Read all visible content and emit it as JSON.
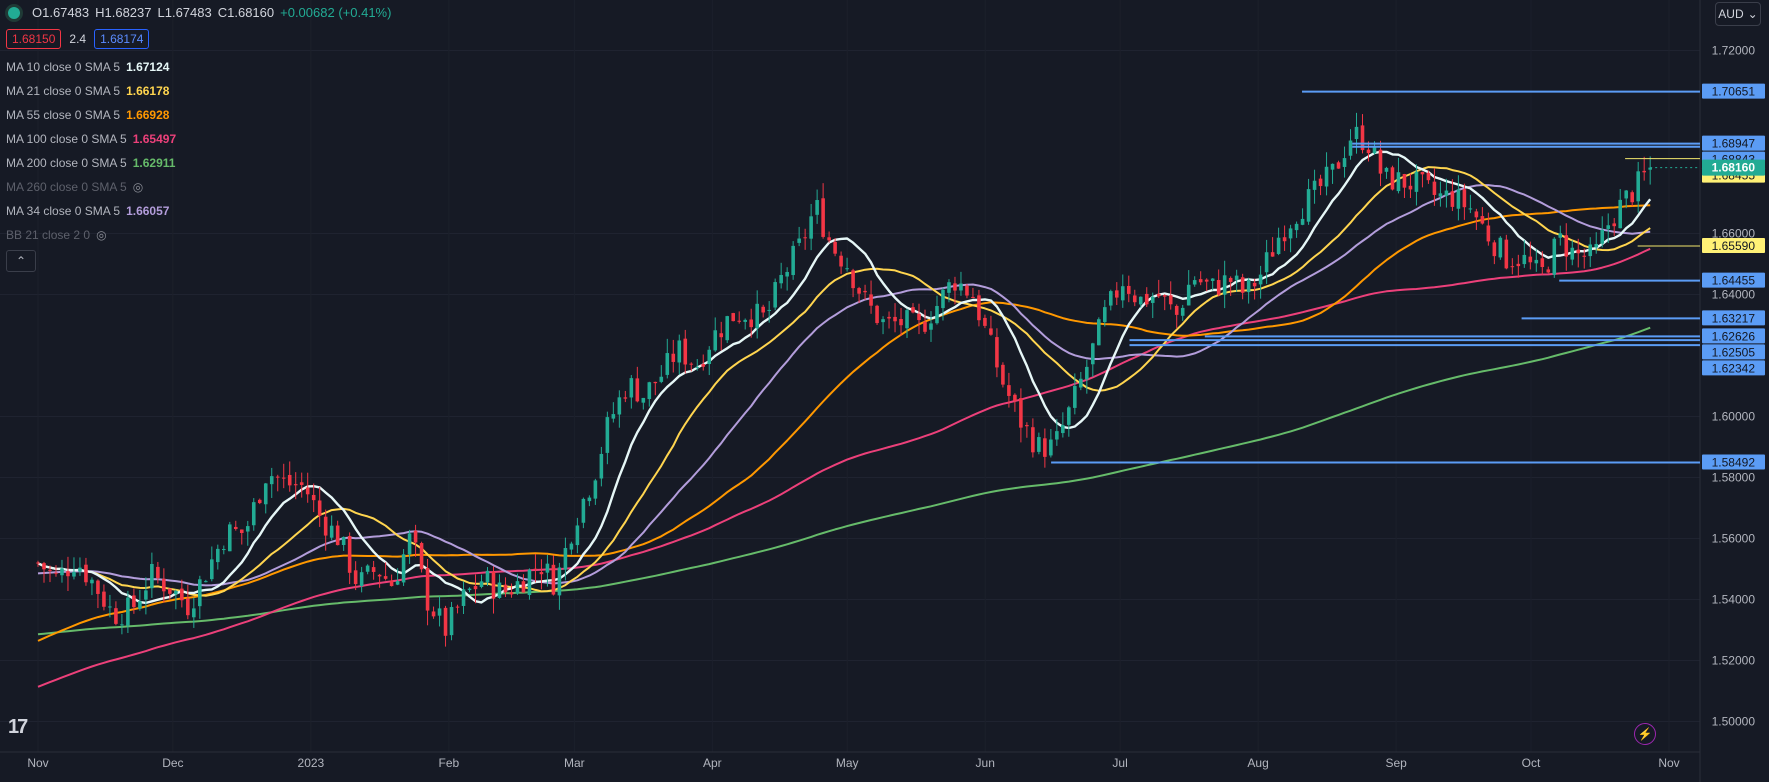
{
  "ohlc": {
    "open": "O1.67483",
    "high": "H1.68237",
    "low": "L1.67483",
    "close": "C1.68160",
    "change": "+0.00682 (+0.41%)"
  },
  "quote": {
    "bid": "1.68150",
    "spread": "2.4",
    "ask": "1.68174"
  },
  "legend": [
    {
      "label": "MA 10 close 0 SMA 5",
      "value": "1.67124",
      "color": "#e6f7f7",
      "hidden": false
    },
    {
      "label": "MA 21 close 0 SMA 5",
      "value": "1.66178",
      "color": "#ffd54f",
      "hidden": false
    },
    {
      "label": "MA 55 close 0 SMA 5",
      "value": "1.66928",
      "color": "#ff9800",
      "hidden": false
    },
    {
      "label": "MA 100 close 0 SMA 5",
      "value": "1.65497",
      "color": "#ec407a",
      "hidden": false
    },
    {
      "label": "MA 200 close 0 SMA 5",
      "value": "1.62911",
      "color": "#66bb6a",
      "hidden": false
    },
    {
      "label": "MA 260 close 0 SMA 5",
      "value": "",
      "color": "#5d606b",
      "hidden": true
    },
    {
      "label": "MA 34 close 0 SMA 5",
      "value": "1.66057",
      "color": "#b39ddb",
      "hidden": false
    },
    {
      "label": "BB 21 close 2 0",
      "value": "",
      "color": "#5d606b",
      "hidden": true
    }
  ],
  "currency": "AUD",
  "chart_data": {
    "type": "candlestick",
    "symbol_currency": "AUD",
    "ylim": [
      1.49,
      1.73
    ],
    "y_ticks": [
      "1.72000",
      "1.66000",
      "1.64000",
      "1.60000",
      "1.58000",
      "1.56000",
      "1.54000",
      "1.52000",
      "1.50000"
    ],
    "x_labels": [
      {
        "label": "Nov",
        "t": 0
      },
      {
        "label": "Dec",
        "t": 4.3
      },
      {
        "label": "2023",
        "t": 8.7
      },
      {
        "label": "Feb",
        "t": 13.1
      },
      {
        "label": "Mar",
        "t": 17.1
      },
      {
        "label": "Apr",
        "t": 21.5
      },
      {
        "label": "May",
        "t": 25.8
      },
      {
        "label": "Jun",
        "t": 30.2
      },
      {
        "label": "Jul",
        "t": 34.5
      },
      {
        "label": "Aug",
        "t": 38.9
      },
      {
        "label": "Sep",
        "t": 43.3
      },
      {
        "label": "Oct",
        "t": 47.6
      },
      {
        "label": "Nov",
        "t": 52.0
      }
    ],
    "price_path": [
      [
        0,
        1.552
      ],
      [
        0.6,
        1.547
      ],
      [
        1.2,
        1.553
      ],
      [
        1.8,
        1.545
      ],
      [
        2.4,
        1.535
      ],
      [
        3,
        1.537
      ],
      [
        3.6,
        1.548
      ],
      [
        4.2,
        1.544
      ],
      [
        4.8,
        1.538
      ],
      [
        5.3,
        1.548
      ],
      [
        6,
        1.562
      ],
      [
        6.6,
        1.562
      ],
      [
        7.3,
        1.582
      ],
      [
        7.9,
        1.578
      ],
      [
        8.5,
        1.577
      ],
      [
        9,
        1.567
      ],
      [
        9.6,
        1.56
      ],
      [
        10.2,
        1.545
      ],
      [
        10.8,
        1.55
      ],
      [
        11.3,
        1.545
      ],
      [
        11.9,
        1.561
      ],
      [
        12.4,
        1.54
      ],
      [
        13,
        1.53
      ],
      [
        13.6,
        1.541
      ],
      [
        14.2,
        1.547
      ],
      [
        14.8,
        1.542
      ],
      [
        15.4,
        1.546
      ],
      [
        16,
        1.552
      ],
      [
        16.5,
        1.545
      ],
      [
        17.1,
        1.566
      ],
      [
        17.7,
        1.58
      ],
      [
        18.2,
        1.598
      ],
      [
        18.8,
        1.611
      ],
      [
        19.3,
        1.607
      ],
      [
        19.9,
        1.614
      ],
      [
        20.4,
        1.622
      ],
      [
        21,
        1.617
      ],
      [
        21.5,
        1.626
      ],
      [
        22.1,
        1.633
      ],
      [
        22.6,
        1.634
      ],
      [
        23.2,
        1.632
      ],
      [
        23.7,
        1.645
      ],
      [
        24.3,
        1.656
      ],
      [
        24.8,
        1.669
      ],
      [
        25.3,
        1.656
      ],
      [
        25.8,
        1.65
      ],
      [
        26.4,
        1.637
      ],
      [
        27,
        1.63
      ],
      [
        27.6,
        1.631
      ],
      [
        28.1,
        1.629
      ],
      [
        28.7,
        1.637
      ],
      [
        29.2,
        1.645
      ],
      [
        29.8,
        1.64
      ],
      [
        30.3,
        1.625
      ],
      [
        30.8,
        1.61
      ],
      [
        31.4,
        1.597
      ],
      [
        31.9,
        1.59
      ],
      [
        32.4,
        1.59
      ],
      [
        32.9,
        1.602
      ],
      [
        33.5,
        1.618
      ],
      [
        34,
        1.633
      ],
      [
        34.6,
        1.645
      ],
      [
        35.1,
        1.638
      ],
      [
        35.7,
        1.64
      ],
      [
        36.3,
        1.633
      ],
      [
        36.8,
        1.646
      ],
      [
        37.4,
        1.642
      ],
      [
        38,
        1.645
      ],
      [
        38.5,
        1.64
      ],
      [
        39,
        1.647
      ],
      [
        39.6,
        1.66
      ],
      [
        40.2,
        1.668
      ],
      [
        40.7,
        1.673
      ],
      [
        41.3,
        1.68
      ],
      [
        41.9,
        1.693
      ],
      [
        42.4,
        1.69
      ],
      [
        42.9,
        1.678
      ],
      [
        43.5,
        1.677
      ],
      [
        44,
        1.676
      ],
      [
        44.6,
        1.672
      ],
      [
        45.1,
        1.672
      ],
      [
        45.7,
        1.668
      ],
      [
        46.2,
        1.66
      ],
      [
        46.8,
        1.652
      ],
      [
        47.3,
        1.652
      ],
      [
        47.9,
        1.646
      ],
      [
        48.5,
        1.658
      ],
      [
        49,
        1.653
      ],
      [
        49.6,
        1.652
      ],
      [
        50.1,
        1.664
      ],
      [
        50.6,
        1.671
      ],
      [
        51.1,
        1.677
      ],
      [
        51.4,
        1.6816
      ]
    ],
    "series": [
      {
        "name": "MA 10 close 0 SMA 5",
        "last": 1.67124,
        "color": "#e6f7f7"
      },
      {
        "name": "MA 21 close 0 SMA 5",
        "last": 1.66178,
        "color": "#ffd54f"
      },
      {
        "name": "MA 55 close 0 SMA 5",
        "last": 1.66928,
        "color": "#ff9800"
      },
      {
        "name": "MA 100 close 0 SMA 5",
        "last": 1.65497,
        "color": "#ec407a"
      },
      {
        "name": "MA 200 close 0 SMA 5",
        "last": 1.62911,
        "color": "#66bb6a"
      },
      {
        "name": "MA 34 close 0 SMA 5",
        "last": 1.66057,
        "color": "#b39ddb"
      }
    ],
    "horizontal_levels": [
      {
        "value": 1.70651,
        "label": "1.70651",
        "start_t": 40.3,
        "color": "#5b9cf5",
        "label_bg": "#5b9cf5"
      },
      {
        "value": 1.68947,
        "label": "1.68947",
        "start_t": 41.9,
        "color": "#5b9cf5",
        "label_bg": "#5b9cf5"
      },
      {
        "value": 1.68843,
        "label": "1.68843",
        "start_t": 41.9,
        "color": "#5b9cf5",
        "label_bg": "#5b9cf5"
      },
      {
        "value": 1.68455,
        "label": "1.68455",
        "start_t": 50.6,
        "color": "#f2e76c",
        "label_bg": "#fff176"
      },
      {
        "value": 1.6559,
        "label": "1.65590",
        "start_t": 51.0,
        "color": "#f2e76c",
        "label_bg": "#fff176"
      },
      {
        "value": 1.64455,
        "label": "1.64455",
        "start_t": 48.5,
        "color": "#5b9cf5",
        "label_bg": "#5b9cf5"
      },
      {
        "value": 1.63217,
        "label": "1.63217",
        "start_t": 47.3,
        "color": "#5b9cf5",
        "label_bg": "#5b9cf5"
      },
      {
        "value": 1.62626,
        "label": "1.62626",
        "start_t": 37.2,
        "color": "#5b9cf5",
        "label_bg": "#5b9cf5"
      },
      {
        "value": 1.62505,
        "label": "1.62505",
        "start_t": 34.8,
        "color": "#5b9cf5",
        "label_bg": "#5b9cf5"
      },
      {
        "value": 1.62342,
        "label": "1.62342",
        "start_t": 34.8,
        "color": "#5b9cf5",
        "label_bg": "#5b9cf5"
      },
      {
        "value": 1.58492,
        "label": "1.58492",
        "start_t": 32.3,
        "color": "#5b9cf5",
        "label_bg": "#5b9cf5"
      }
    ],
    "last_price": {
      "value": 1.6816,
      "label": "1.68160",
      "color": "#22ab94"
    }
  }
}
